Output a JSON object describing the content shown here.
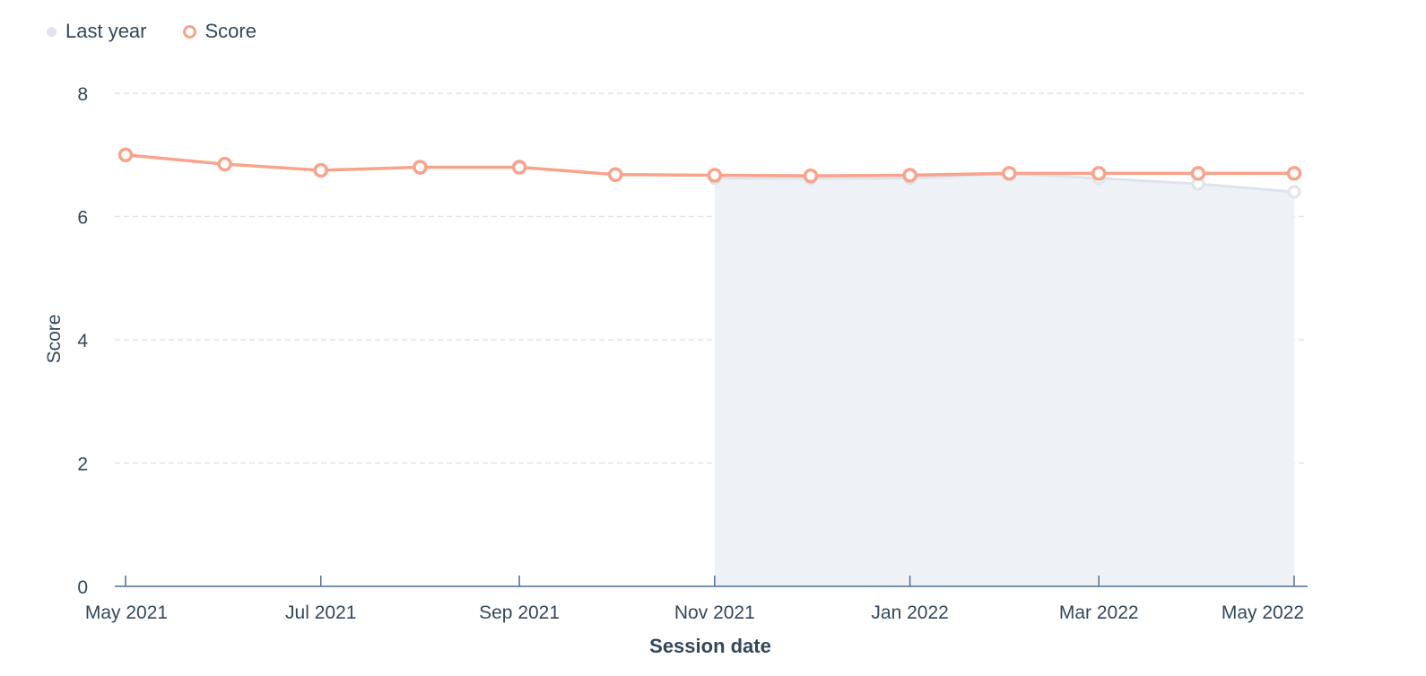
{
  "legend": {
    "items": [
      {
        "label": "Last year",
        "color": "#dfe3eb",
        "style": "filled"
      },
      {
        "label": "Score",
        "color": "#f8a38b",
        "style": "ring"
      }
    ]
  },
  "chart_data": {
    "type": "line",
    "title": "",
    "xlabel": "Session date",
    "ylabel": "Score",
    "ylim": [
      0,
      8
    ],
    "yticks": [
      0,
      2,
      4,
      6,
      8
    ],
    "grid": true,
    "legend_position": "top-left",
    "x": [
      "2021-05-01",
      "2021-06-01",
      "2021-07-01",
      "2021-08-01",
      "2021-09-01",
      "2021-10-01",
      "2021-11-01",
      "2021-12-01",
      "2022-01-01",
      "2022-02-01",
      "2022-03-01",
      "2022-04-01",
      "2022-05-01"
    ],
    "xtick_labels": [
      {
        "x": "2021-05-01",
        "label": "May 2021"
      },
      {
        "x": "2021-07-01",
        "label": "Jul 2021"
      },
      {
        "x": "2021-09-01",
        "label": "Sep 2021"
      },
      {
        "x": "2021-11-01",
        "label": "Nov 2021"
      },
      {
        "x": "2022-01-01",
        "label": "Jan 2022"
      },
      {
        "x": "2022-03-01",
        "label": "Mar 2022"
      },
      {
        "x": "2022-05-01",
        "label": "May 2022"
      }
    ],
    "series": [
      {
        "name": "Score",
        "color": "#f8a38b",
        "values": [
          7.0,
          6.85,
          6.75,
          6.8,
          6.8,
          6.68,
          6.67,
          6.66,
          6.67,
          6.7,
          6.7,
          6.7,
          6.7
        ]
      },
      {
        "name": "Last year",
        "color": "#dfe3eb",
        "fill": "#eef2f6",
        "x": [
          "2021-11-01",
          "2021-12-01",
          "2022-01-01",
          "2022-02-01",
          "2022-03-01",
          "2022-04-01",
          "2022-05-01"
        ],
        "values": [
          6.62,
          6.62,
          6.62,
          6.7,
          6.62,
          6.53,
          6.4
        ]
      }
    ]
  }
}
